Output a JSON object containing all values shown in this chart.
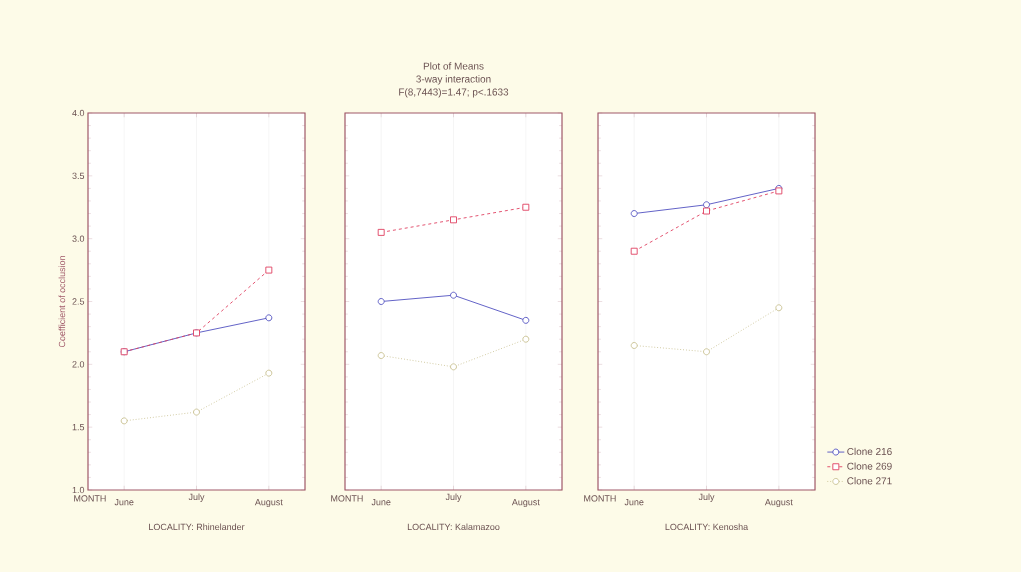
{
  "chart_data": [
    {
      "type": "line",
      "categories": [
        "June",
        "July",
        "August"
      ],
      "xlabel": "LOCALITY: Rhinelander",
      "ylabel": "Coefficient of occlusion",
      "annotations": [
        "MONTH"
      ],
      "ylim": [
        1,
        4
      ],
      "yticks": [
        {
          "value": 1,
          "label": "1.0"
        },
        {
          "value": 1.5,
          "label": "1.5"
        },
        {
          "value": 2,
          "label": "2.0"
        },
        {
          "value": 2.5,
          "label": "2.5"
        },
        {
          "value": 3,
          "label": "3.0"
        },
        {
          "value": 3.5,
          "label": "3.5"
        },
        {
          "value": 4,
          "label": "4.0"
        }
      ],
      "grid": "x",
      "series": [
        {
          "color": "#5050c0",
          "marker": "circle",
          "line_style": "solid",
          "values": [
            2.1,
            2.25,
            2.37
          ]
        },
        {
          "color": "#e04060",
          "marker": "square",
          "line_style": "dashed",
          "values": [
            2.1,
            2.25,
            2.75
          ]
        },
        {
          "color": "#c8c090",
          "marker": "circle",
          "line_style": "dotted",
          "values": [
            1.55,
            1.62,
            1.93
          ]
        }
      ]
    },
    {
      "type": "line",
      "title": "Plot of Means",
      "subtitle": "3-way interaction",
      "categories": [
        "June",
        "July",
        "August"
      ],
      "xlabel": "LOCALITY: Kalamazoo",
      "annotations": [
        "MONTH",
        "F(8,7443)=1.47; p<.1633"
      ],
      "ylim": [
        1,
        4
      ],
      "yticks": [
        1,
        1.5,
        2,
        2.5,
        3,
        3.5,
        4
      ],
      "tick_labels": "x",
      "grid": "x",
      "series": [
        {
          "color": "#5050c0",
          "marker": "circle",
          "line_style": "solid",
          "values": [
            2.5,
            2.55,
            2.35
          ]
        },
        {
          "color": "#e04060",
          "marker": "square",
          "line_style": "dashed",
          "values": [
            3.05,
            3.15,
            3.25
          ]
        },
        {
          "color": "#c8c090",
          "marker": "circle",
          "line_style": "dotted",
          "values": [
            2.07,
            1.98,
            2.2
          ]
        }
      ]
    },
    {
      "type": "line",
      "categories": [
        "June",
        "July",
        "August"
      ],
      "xlabel": "LOCALITY: Kenosha",
      "annotations": [
        "MONTH"
      ],
      "ylim": [
        1,
        4
      ],
      "yticks": [
        1,
        1.5,
        2,
        2.5,
        3,
        3.5,
        4
      ],
      "tick_labels": "x",
      "grid": "x",
      "legend": "right",
      "series": [
        {
          "name": "Clone 216",
          "color": "#5050c0",
          "marker": "circle",
          "line_style": "solid",
          "values": [
            3.2,
            3.27,
            3.4
          ]
        },
        {
          "name": "Clone 269",
          "color": "#e04060",
          "marker": "square",
          "line_style": "dashed",
          "values": [
            2.9,
            3.22,
            3.38
          ]
        },
        {
          "name": "Clone 271",
          "color": "#c8c090",
          "marker": "circle",
          "line_style": "dotted",
          "values": [
            2.15,
            2.1,
            2.45
          ]
        }
      ]
    }
  ]
}
